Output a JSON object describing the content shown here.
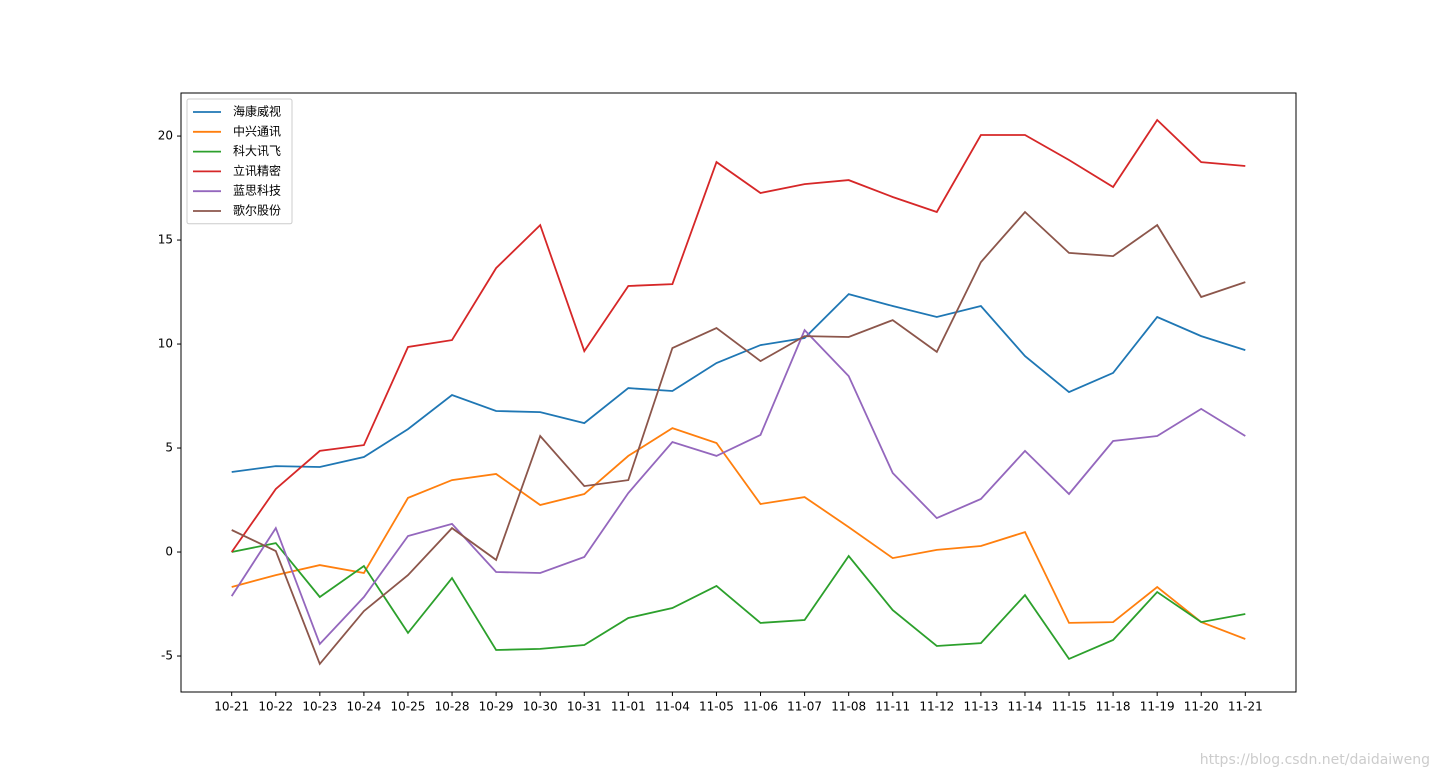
{
  "chart_data": {
    "type": "line",
    "categories": [
      "10-21",
      "10-22",
      "10-23",
      "10-24",
      "10-25",
      "10-28",
      "10-29",
      "10-30",
      "10-31",
      "11-01",
      "11-04",
      "11-05",
      "11-06",
      "11-07",
      "11-08",
      "11-11",
      "11-12",
      "11-13",
      "11-14",
      "11-15",
      "11-18",
      "11-19",
      "11-20",
      "11-21"
    ],
    "series": [
      {
        "name": "海康威视",
        "color": "#1f77b4",
        "values": [
          3.85,
          4.13,
          4.09,
          4.57,
          5.91,
          7.55,
          6.78,
          6.73,
          6.2,
          7.88,
          7.74,
          9.09,
          9.95,
          10.29,
          12.4,
          11.83,
          11.3,
          11.83,
          9.42,
          7.69,
          8.61,
          11.3,
          10.38,
          9.71
        ]
      },
      {
        "name": "中兴通讯",
        "color": "#ff7f0e",
        "values": [
          -1.68,
          -1.11,
          -0.63,
          -1.01,
          2.6,
          3.46,
          3.75,
          2.26,
          2.79,
          4.62,
          5.96,
          5.24,
          2.31,
          2.64,
          1.2,
          -0.29,
          0.1,
          0.29,
          0.96,
          -3.41,
          -3.37,
          -1.68,
          -3.37,
          -4.18
        ]
      },
      {
        "name": "科大讯飞",
        "color": "#2ca02c",
        "values": [
          0,
          0.43,
          -2.16,
          -0.67,
          -3.89,
          -1.25,
          -4.71,
          -4.66,
          -4.47,
          -3.17,
          -2.69,
          -1.63,
          -3.41,
          -3.27,
          -0.19,
          -2.79,
          -4.52,
          -4.38,
          -2.07,
          -5.14,
          -4.23,
          -1.92,
          -3.37,
          -2.98
        ]
      },
      {
        "name": "立讯精密",
        "color": "#d62728",
        "values": [
          0,
          3.03,
          4.86,
          5.14,
          9.86,
          10.19,
          13.65,
          15.72,
          9.66,
          12.79,
          12.88,
          18.75,
          17.26,
          17.69,
          17.88,
          17.07,
          16.35,
          20.05,
          20.05,
          18.85,
          17.55,
          20.77,
          18.75,
          18.56
        ]
      },
      {
        "name": "蓝思科技",
        "color": "#9467bd",
        "values": [
          -2.12,
          1.15,
          -4.42,
          -2.16,
          0.77,
          1.35,
          -0.96,
          -1.01,
          -0.24,
          2.84,
          5.29,
          4.62,
          5.63,
          10.67,
          8.46,
          3.8,
          1.63,
          2.55,
          4.86,
          2.79,
          5.34,
          5.58,
          6.88,
          5.58
        ]
      },
      {
        "name": "歌尔股份",
        "color": "#8c564b",
        "values": [
          1.06,
          0.05,
          -5.38,
          -2.84,
          -1.11,
          1.15,
          -0.38,
          5.58,
          3.17,
          3.46,
          9.81,
          10.77,
          9.18,
          10.38,
          10.34,
          11.15,
          9.62,
          13.94,
          16.35,
          14.38,
          14.23,
          15.72,
          12.26,
          12.98
        ]
      }
    ],
    "ylim": [
      -6.73,
      22.07
    ],
    "yticks": [
      -5,
      0,
      5,
      10,
      15,
      20
    ],
    "grid": false,
    "legend": "upper left"
  },
  "watermark": "https://blog.csdn.net/daidaiweng"
}
